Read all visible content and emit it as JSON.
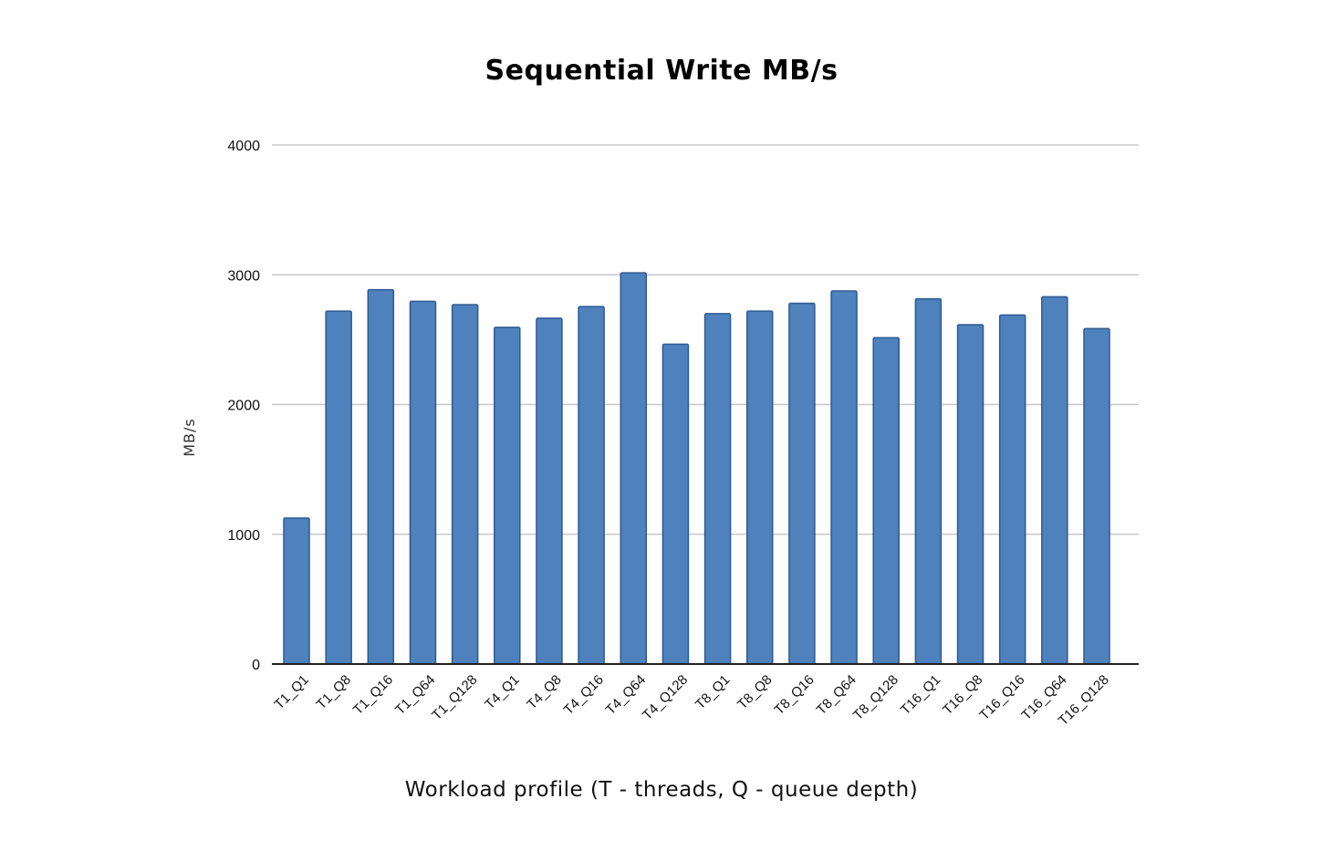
{
  "chart_data": {
    "type": "bar",
    "title": "Sequential Write MB/s",
    "xlabel": "Workload profile (T - threads, Q - queue depth)",
    "ylabel": "MB/s",
    "ylim": [
      0,
      4000
    ],
    "yticks": [
      0,
      1000,
      2000,
      3000,
      4000
    ],
    "grid": true,
    "legend": "none",
    "bar_color": "#4f81bd",
    "bar_edge_color": "#2c5a93",
    "categories": [
      "T1_Q1",
      "T1_Q8",
      "T1_Q16",
      "T1_Q64",
      "T1_Q128",
      "T4_Q1",
      "T4_Q8",
      "T4_Q16",
      "T4_Q64",
      "T4_Q128",
      "T8_Q1",
      "T8_Q8",
      "T8_Q16",
      "T8_Q64",
      "T8_Q128",
      "T16_Q1",
      "T16_Q8",
      "T16_Q16",
      "T16_Q64",
      "T16_Q128"
    ],
    "values": [
      1125,
      2720,
      2885,
      2795,
      2770,
      2595,
      2665,
      2755,
      3015,
      2465,
      2700,
      2720,
      2780,
      2875,
      2515,
      2815,
      2615,
      2690,
      2830,
      2585
    ]
  }
}
